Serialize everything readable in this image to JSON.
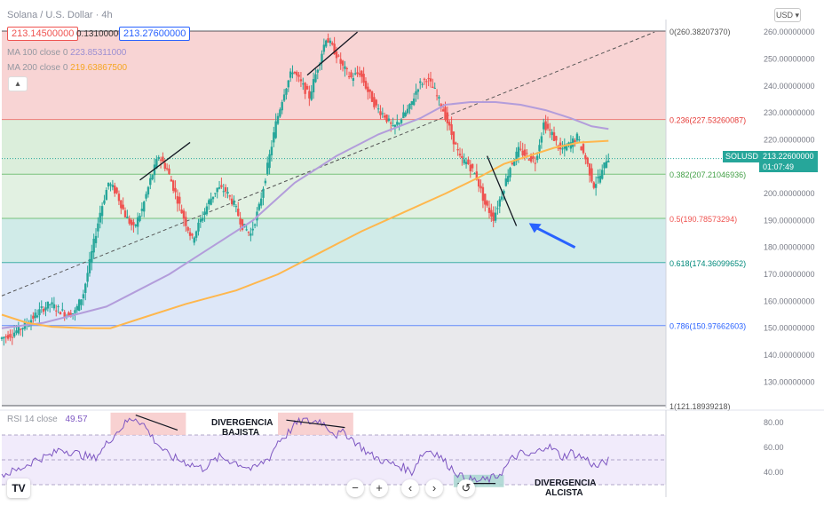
{
  "header": {
    "title": "Solana / U.S. Dollar · 4h",
    "price_bid": "213.14500000",
    "spread": "0.13100000",
    "price_ask": "213.27600000",
    "ma100_label": "MA 100 close 0",
    "ma100_value": "223.85311000",
    "ma200_label": "MA 200 close 0",
    "ma200_value": "219.63867500",
    "currency_button": "USD"
  },
  "ticker": {
    "symbol": "SOLUSD",
    "price": "213.22600000",
    "countdown": "01:07:49"
  },
  "colors": {
    "bull": "#26a69a",
    "bear": "#ef5350",
    "ma100": "#b39ddb",
    "ma200": "#ffb74d",
    "rsi": "#7e57c2",
    "arrow": "#2962ff"
  },
  "chart_data": [
    {
      "type": "candlestick",
      "title": "Solana / U.S. Dollar · 4h",
      "ylim": [
        115,
        262
      ],
      "price_ticks": [
        "260.00000000",
        "250.00000000",
        "240.00000000",
        "230.00000000",
        "220.00000000",
        "210.00000000",
        "200.00000000",
        "190.00000000",
        "180.00000000",
        "170.00000000",
        "160.00000000",
        "150.00000000",
        "140.00000000",
        "130.00000000"
      ],
      "fibonacci": [
        {
          "label": "0(260.38207370)",
          "value": 260.382
        },
        {
          "label": "0.236(227.53260087)",
          "value": 227.533
        },
        {
          "label": "0.382(207.21046936)",
          "value": 207.21
        },
        {
          "label": "0.5(190.78573294)",
          "value": 190.786
        },
        {
          "label": "0.618(174.36099652)",
          "value": 174.361
        },
        {
          "label": "0.786(150.97662603)",
          "value": 150.977
        },
        {
          "label": "1(121.18939218)",
          "value": 121.189
        }
      ],
      "price_path": [
        [
          0,
          146
        ],
        [
          3,
          148
        ],
        [
          6,
          151
        ],
        [
          8,
          154
        ],
        [
          10,
          157
        ],
        [
          12,
          159
        ],
        [
          14,
          157
        ],
        [
          16,
          155
        ],
        [
          18,
          156
        ],
        [
          20,
          163
        ],
        [
          22,
          178
        ],
        [
          24,
          193
        ],
        [
          26,
          204
        ],
        [
          28,
          200
        ],
        [
          30,
          192
        ],
        [
          32,
          187
        ],
        [
          34,
          194
        ],
        [
          36,
          205
        ],
        [
          38,
          214
        ],
        [
          40,
          209
        ],
        [
          42,
          200
        ],
        [
          44,
          191
        ],
        [
          46,
          183
        ],
        [
          48,
          190
        ],
        [
          50,
          197
        ],
        [
          52,
          202
        ],
        [
          54,
          201
        ],
        [
          56,
          196
        ],
        [
          58,
          188
        ],
        [
          60,
          185
        ],
        [
          62,
          195
        ],
        [
          64,
          210
        ],
        [
          66,
          226
        ],
        [
          68,
          238
        ],
        [
          70,
          246
        ],
        [
          72,
          241
        ],
        [
          74,
          236
        ],
        [
          76,
          247
        ],
        [
          78,
          258
        ],
        [
          80,
          253
        ],
        [
          82,
          247
        ],
        [
          84,
          243
        ],
        [
          86,
          245
        ],
        [
          88,
          238
        ],
        [
          90,
          232
        ],
        [
          92,
          229
        ],
        [
          94,
          224
        ],
        [
          96,
          228
        ],
        [
          98,
          232
        ],
        [
          100,
          240
        ],
        [
          102,
          243
        ],
        [
          104,
          238
        ],
        [
          106,
          231
        ],
        [
          108,
          222
        ],
        [
          110,
          213
        ],
        [
          112,
          211
        ],
        [
          114,
          206
        ],
        [
          116,
          196
        ],
        [
          118,
          191
        ],
        [
          120,
          200
        ],
        [
          122,
          210
        ],
        [
          124,
          216
        ],
        [
          126,
          214
        ],
        [
          128,
          212
        ],
        [
          130,
          226
        ],
        [
          132,
          222
        ],
        [
          134,
          216
        ],
        [
          136,
          218
        ],
        [
          138,
          221
        ],
        [
          140,
          213
        ],
        [
          142,
          203
        ],
        [
          144,
          208
        ],
        [
          145,
          213
        ]
      ],
      "ma100": [
        [
          0,
          150
        ],
        [
          10,
          152
        ],
        [
          20,
          156
        ],
        [
          25,
          158
        ],
        [
          30,
          162
        ],
        [
          40,
          170
        ],
        [
          50,
          180
        ],
        [
          60,
          190
        ],
        [
          70,
          204
        ],
        [
          80,
          214
        ],
        [
          90,
          222
        ],
        [
          100,
          228
        ],
        [
          106,
          233
        ],
        [
          112,
          234
        ],
        [
          118,
          234
        ],
        [
          124,
          233
        ],
        [
          130,
          231
        ],
        [
          136,
          228
        ],
        [
          141,
          225
        ],
        [
          145,
          224
        ]
      ],
      "ma200": [
        [
          0,
          155
        ],
        [
          6,
          152
        ],
        [
          12,
          150.5
        ],
        [
          20,
          150
        ],
        [
          26,
          150
        ],
        [
          34,
          154
        ],
        [
          44,
          159
        ],
        [
          56,
          164
        ],
        [
          66,
          170
        ],
        [
          76,
          178
        ],
        [
          86,
          186
        ],
        [
          96,
          193
        ],
        [
          106,
          200
        ],
        [
          114,
          206
        ],
        [
          120,
          211
        ],
        [
          126,
          214
        ],
        [
          132,
          217
        ],
        [
          138,
          219
        ],
        [
          145,
          219.6
        ]
      ],
      "trendline": [
        [
          0,
          162
        ],
        [
          156,
          260
        ]
      ],
      "annotation_lines": [
        {
          "from": [
            33,
            205
          ],
          "to": [
            45,
            219
          ]
        },
        {
          "from": [
            73,
            244
          ],
          "to": [
            85,
            260
          ]
        },
        {
          "from": [
            116,
            214
          ],
          "to": [
            123,
            188
          ]
        }
      ],
      "arrow": {
        "from": [
          137,
          180
        ],
        "to": [
          126,
          189
        ]
      }
    },
    {
      "type": "line",
      "title": "RSI 14 close",
      "current_value": "49.57",
      "ylim": [
        20,
        90
      ],
      "y_ticks": [
        "80.00",
        "60.00",
        "40.00"
      ],
      "bands": [
        30,
        70
      ],
      "rsi_path": [
        [
          0,
          38
        ],
        [
          4,
          42
        ],
        [
          8,
          50
        ],
        [
          12,
          54
        ],
        [
          14,
          59
        ],
        [
          18,
          55
        ],
        [
          22,
          51
        ],
        [
          24,
          58
        ],
        [
          26,
          67
        ],
        [
          28,
          74
        ],
        [
          30,
          81
        ],
        [
          32,
          84
        ],
        [
          34,
          78
        ],
        [
          36,
          68
        ],
        [
          38,
          60
        ],
        [
          40,
          53
        ],
        [
          44,
          48
        ],
        [
          48,
          43
        ],
        [
          52,
          52
        ],
        [
          56,
          48
        ],
        [
          60,
          42
        ],
        [
          64,
          52
        ],
        [
          66,
          65
        ],
        [
          68,
          70
        ],
        [
          70,
          78
        ],
        [
          72,
          82
        ],
        [
          74,
          80
        ],
        [
          76,
          82
        ],
        [
          78,
          76
        ],
        [
          80,
          70
        ],
        [
          82,
          72
        ],
        [
          84,
          66
        ],
        [
          88,
          54
        ],
        [
          92,
          48
        ],
        [
          96,
          44
        ],
        [
          98,
          40
        ],
        [
          100,
          53
        ],
        [
          102,
          58
        ],
        [
          104,
          55
        ],
        [
          106,
          48
        ],
        [
          108,
          42
        ],
        [
          110,
          36
        ],
        [
          112,
          34
        ],
        [
          114,
          33
        ],
        [
          116,
          34
        ],
        [
          118,
          36
        ],
        [
          120,
          42
        ],
        [
          122,
          51
        ],
        [
          124,
          55
        ],
        [
          126,
          53
        ],
        [
          128,
          56
        ],
        [
          130,
          62
        ],
        [
          132,
          58
        ],
        [
          134,
          52
        ],
        [
          136,
          56
        ],
        [
          138,
          53
        ],
        [
          140,
          50
        ],
        [
          142,
          44
        ],
        [
          144,
          48
        ],
        [
          145,
          49.57
        ]
      ],
      "annotations": [
        {
          "text1": "DIVERGENCIA",
          "text2": "BAJISTA"
        },
        {
          "text1": "DIVERGENCIA",
          "text2": "ALCISTA"
        }
      ]
    }
  ],
  "toolbar": {
    "zoom_out": "−",
    "zoom_in": "+",
    "prev": "‹",
    "next": "›",
    "reset": "↺",
    "logo": "TV"
  }
}
